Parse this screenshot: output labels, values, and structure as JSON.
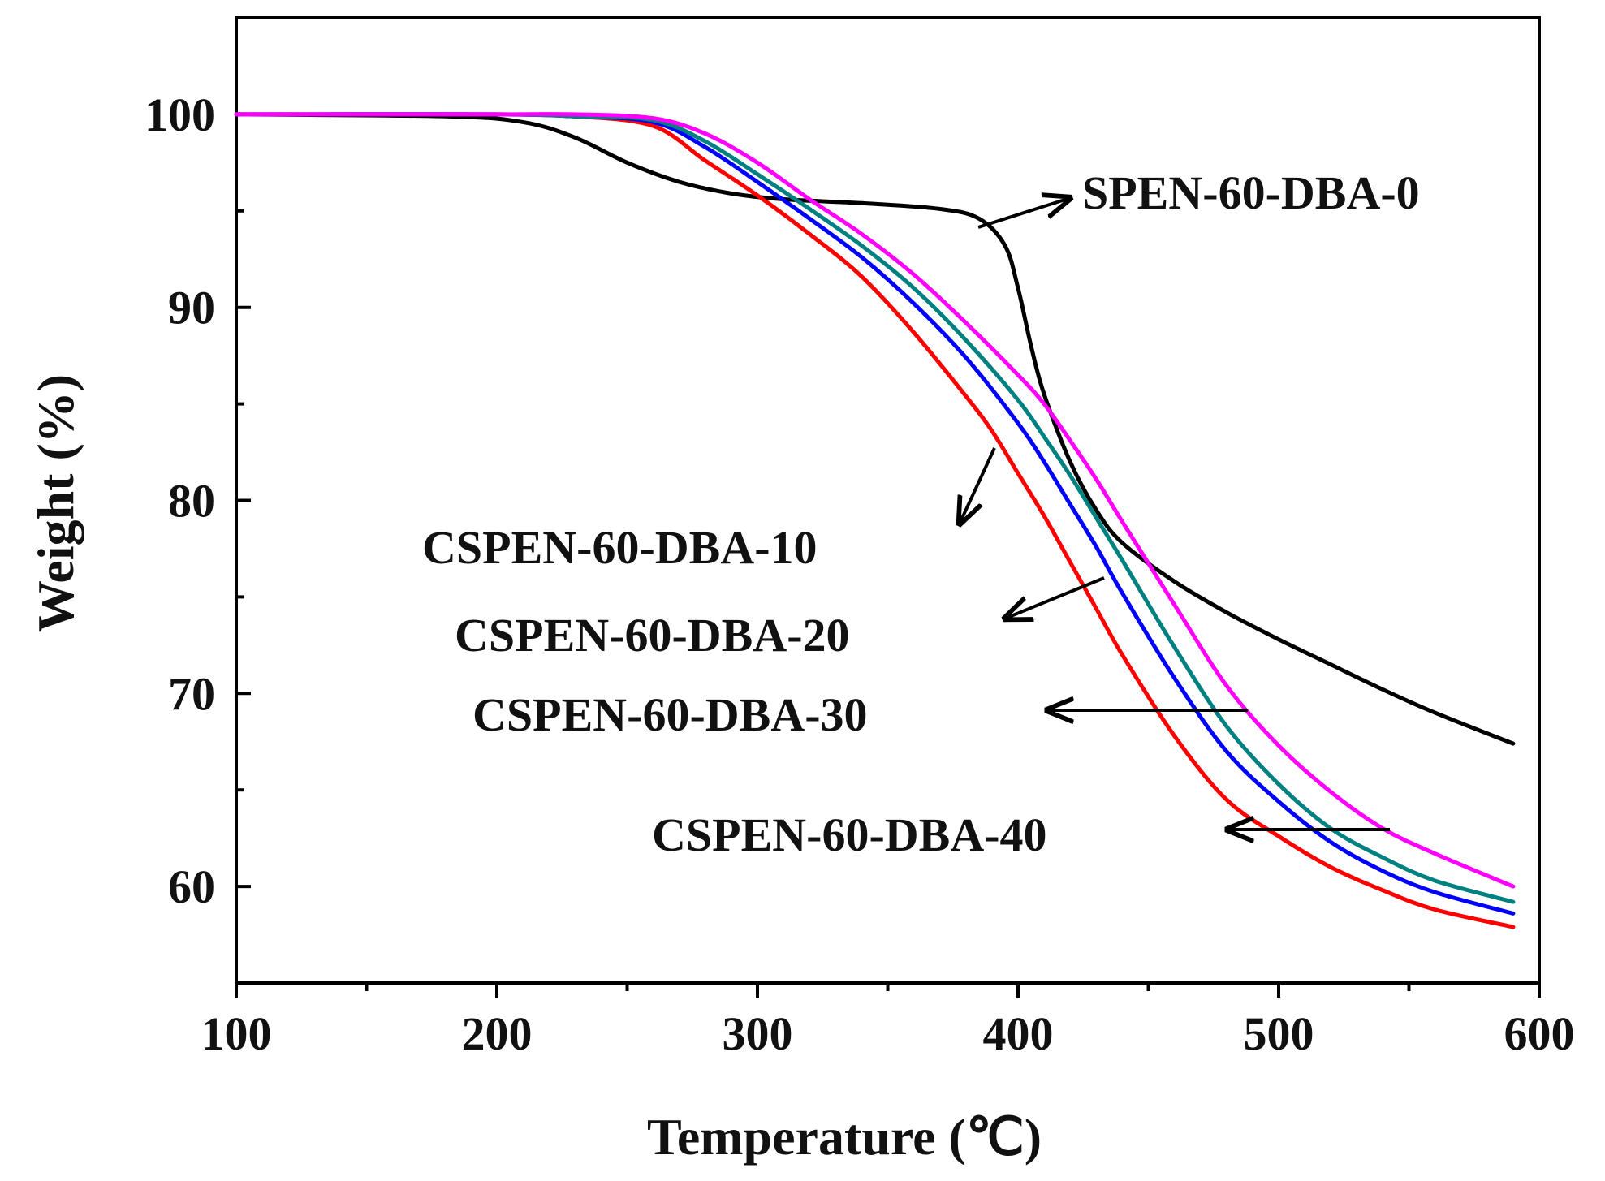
{
  "chart_data": {
    "type": "line",
    "title": "",
    "xlabel": "Temperature (℃)",
    "ylabel": "Weight  (%)",
    "xlim": [
      100,
      600
    ],
    "ylim": [
      55,
      105
    ],
    "xticks": [
      100,
      200,
      300,
      400,
      500,
      600
    ],
    "yticks": [
      60,
      70,
      80,
      90,
      100
    ],
    "x_tick_labels": [
      "100",
      "200",
      "300",
      "400",
      "500",
      "600"
    ],
    "y_tick_labels": [
      "60",
      "70",
      "80",
      "90",
      "100"
    ],
    "grid": false,
    "colors": {
      "SPEN-60-DBA-0": "#000000",
      "CSPEN-60-DBA-10": "#ff0000",
      "CSPEN-60-DBA-20": "#0000ff",
      "CSPEN-60-DBA-30": "#008080",
      "CSPEN-60-DBA-40": "#ff00ff"
    },
    "series": [
      {
        "name": "SPEN-60-DBA-0",
        "x": [
          100,
          180,
          210,
          230,
          250,
          270,
          290,
          310,
          340,
          370,
          385,
          395,
          400,
          405,
          410,
          420,
          430,
          440,
          460,
          480,
          500,
          520,
          540,
          560,
          590
        ],
        "y": [
          100.0,
          99.9,
          99.6,
          98.8,
          97.5,
          96.5,
          95.9,
          95.6,
          95.4,
          95.1,
          94.6,
          93.2,
          91.0,
          88.0,
          85.5,
          82.0,
          79.5,
          77.8,
          75.8,
          74.2,
          72.8,
          71.5,
          70.2,
          69.0,
          67.4
        ]
      },
      {
        "name": "CSPEN-60-DBA-10",
        "x": [
          100,
          200,
          230,
          260,
          280,
          300,
          320,
          340,
          360,
          380,
          390,
          400,
          410,
          420,
          430,
          440,
          460,
          480,
          500,
          520,
          540,
          560,
          590
        ],
        "y": [
          100.0,
          100.0,
          99.9,
          99.4,
          97.6,
          95.8,
          93.8,
          91.6,
          88.7,
          85.4,
          83.6,
          81.4,
          79.2,
          76.8,
          74.4,
          72.0,
          67.8,
          64.5,
          62.6,
          61.0,
          59.8,
          58.8,
          57.9
        ]
      },
      {
        "name": "CSPEN-60-DBA-20",
        "x": [
          100,
          200,
          230,
          260,
          280,
          300,
          320,
          340,
          360,
          380,
          400,
          410,
          420,
          430,
          440,
          460,
          480,
          500,
          520,
          540,
          560,
          590
        ],
        "y": [
          100.0,
          100.0,
          99.9,
          99.6,
          98.3,
          96.5,
          94.6,
          92.6,
          90.2,
          87.4,
          84.0,
          82.0,
          79.8,
          77.6,
          75.2,
          70.8,
          67.0,
          64.4,
          62.3,
          60.8,
          59.7,
          58.6
        ]
      },
      {
        "name": "CSPEN-60-DBA-30",
        "x": [
          100,
          200,
          230,
          260,
          280,
          300,
          320,
          340,
          360,
          380,
          400,
          410,
          420,
          430,
          440,
          460,
          480,
          500,
          520,
          540,
          560,
          590
        ],
        "y": [
          100.0,
          100.0,
          99.9,
          99.7,
          98.6,
          96.9,
          95.1,
          93.2,
          91.0,
          88.3,
          85.2,
          83.3,
          81.3,
          79.1,
          76.9,
          72.4,
          68.3,
          65.3,
          63.0,
          61.5,
          60.3,
          59.2
        ]
      },
      {
        "name": "CSPEN-60-DBA-40",
        "x": [
          100,
          200,
          230,
          260,
          280,
          300,
          320,
          340,
          360,
          380,
          400,
          410,
          420,
          430,
          440,
          460,
          480,
          500,
          520,
          540,
          560,
          590
        ],
        "y": [
          100.0,
          100.0,
          100.0,
          99.8,
          99.0,
          97.5,
          95.6,
          93.8,
          91.7,
          89.2,
          86.5,
          85.0,
          83.1,
          81.1,
          78.9,
          74.6,
          70.4,
          67.3,
          64.9,
          63.0,
          61.7,
          60.0
        ]
      }
    ],
    "annotations": [
      {
        "label": "SPEN-60-DBA-0",
        "target_series": "SPEN-60-DBA-0",
        "points_to": [
          389,
          94.3
        ]
      },
      {
        "label": "CSPEN-60-DBA-10",
        "target_series": "CSPEN-60-DBA-10",
        "points_to": [
          392,
          83.1
        ]
      },
      {
        "label": "CSPEN-60-DBA-20",
        "target_series": "CSPEN-60-DBA-20",
        "points_to": [
          433,
          76.9
        ]
      },
      {
        "label": "CSPEN-60-DBA-30",
        "target_series": "CSPEN-60-DBA-30",
        "points_to": [
          487,
          69.3
        ]
      },
      {
        "label": "CSPEN-60-DBA-40",
        "target_series": "CSPEN-60-DBA-40",
        "points_to": [
          543,
          63.0
        ]
      }
    ]
  }
}
